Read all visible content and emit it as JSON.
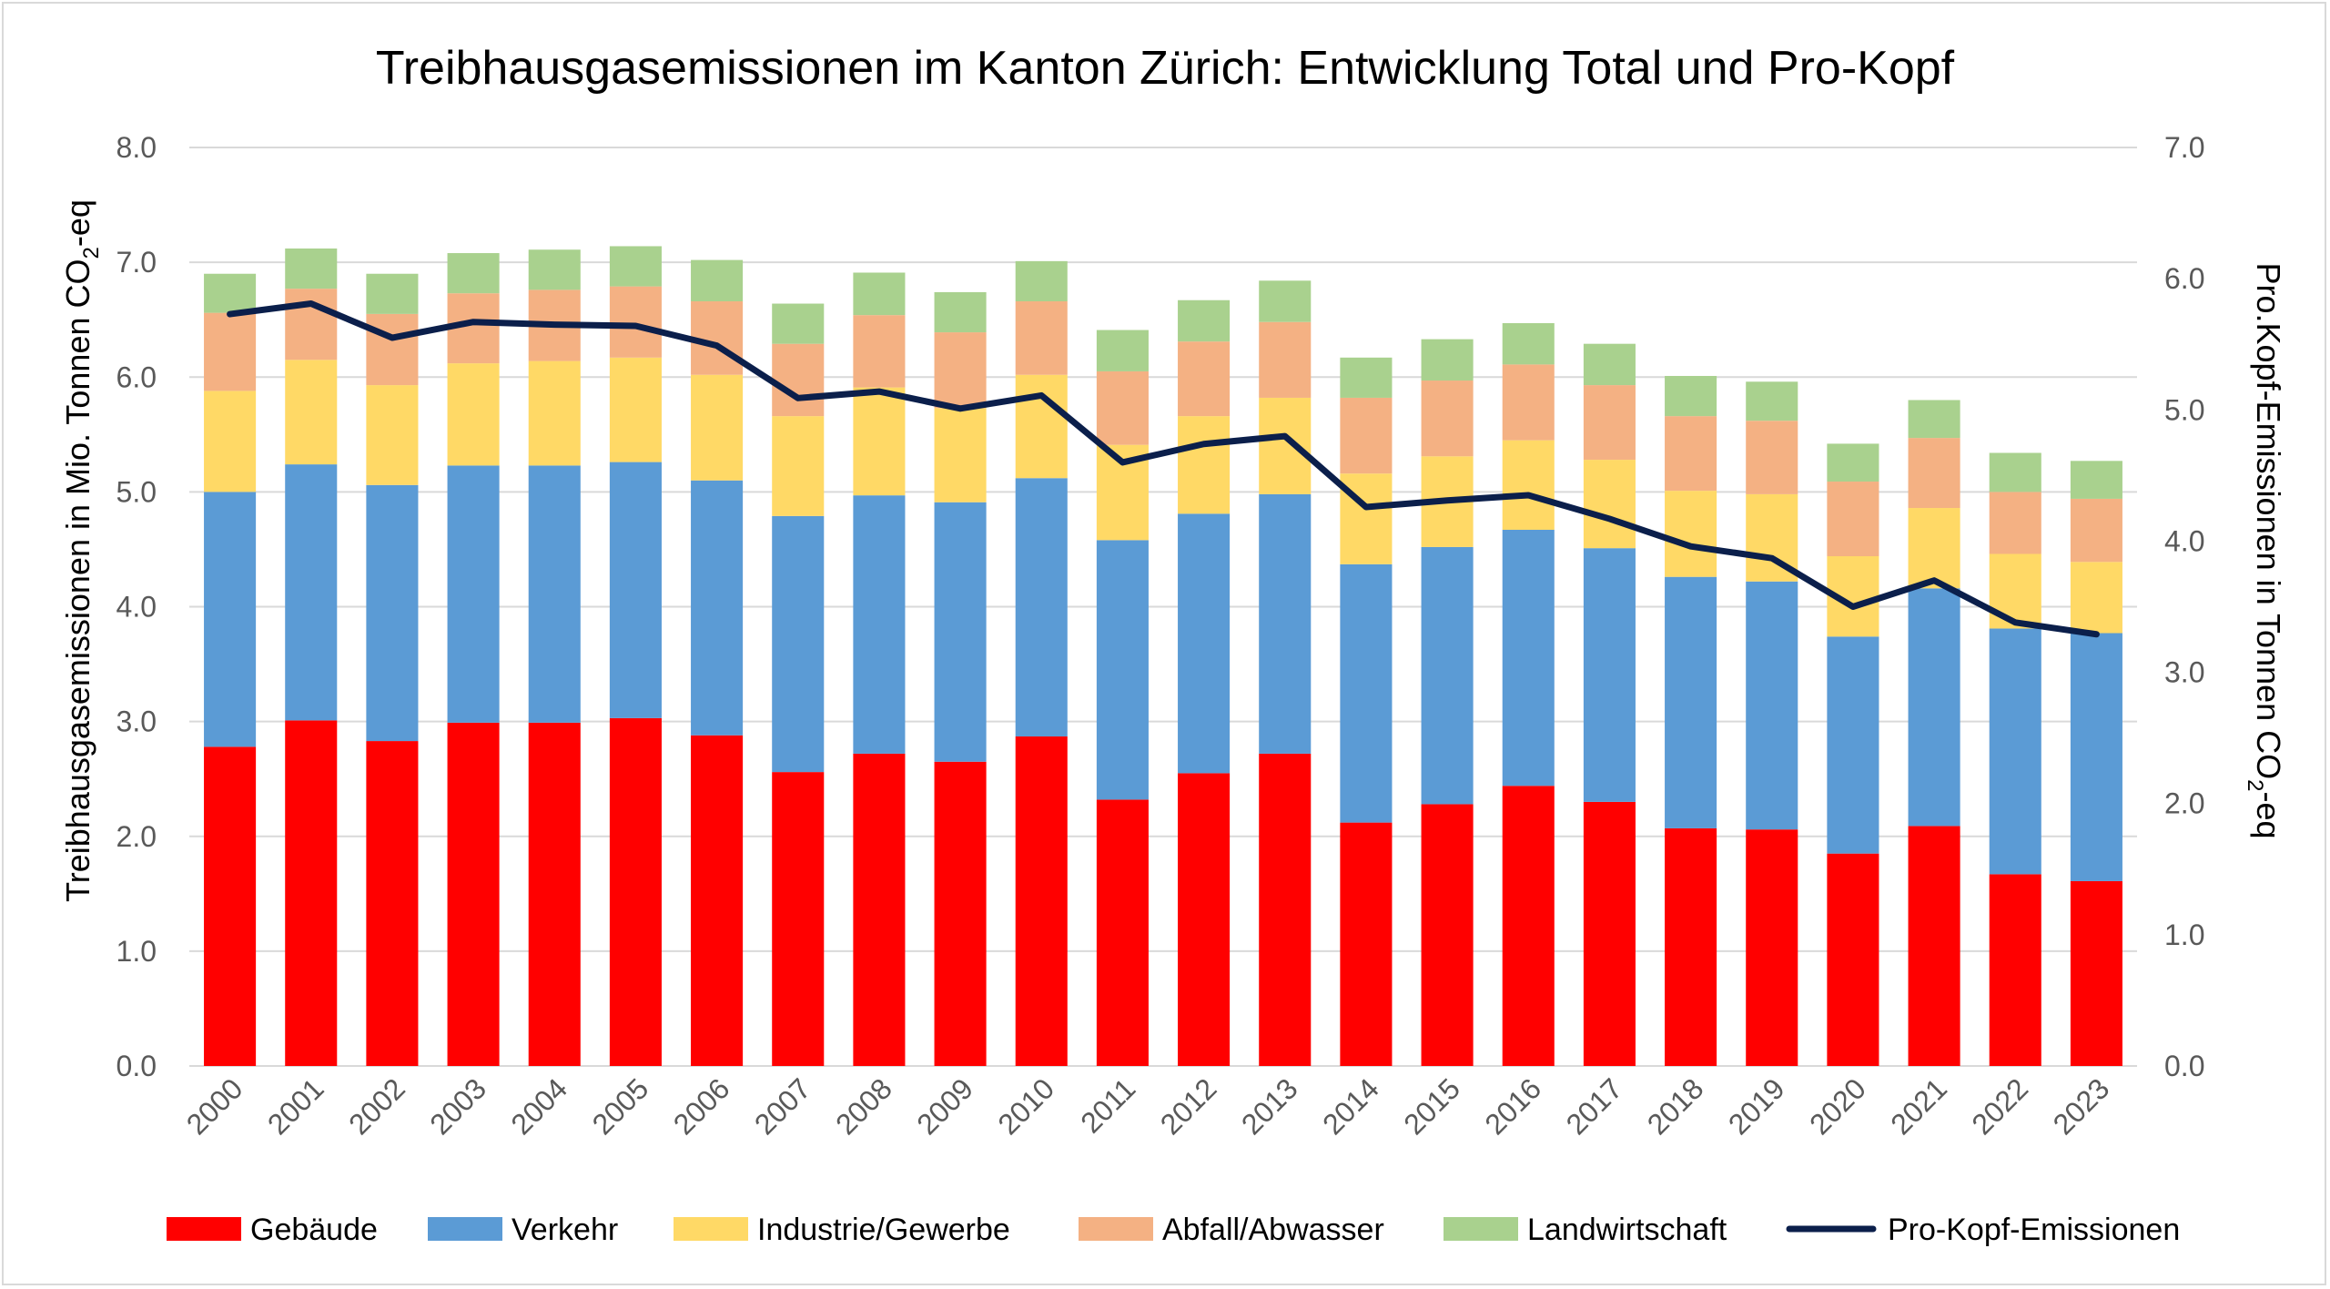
{
  "chart_data": {
    "type": "bar",
    "stacked": true,
    "title": "Treibhausgasemissionen im Kanton Zürich: Entwicklung Total und Pro-Kopf",
    "ylabel": {
      "main": "Treibhausgasemissionen in Mio. Tonnen CO",
      "sub": "2",
      "tail": "-eq"
    },
    "y2label": {
      "main": "Pro.Kopf-Emissionen in Tonnen CO",
      "sub": "2",
      "tail": "-eq"
    },
    "ylim": [
      0,
      8
    ],
    "y2lim": [
      0,
      7
    ],
    "yticks": [
      "0.0",
      "1.0",
      "2.0",
      "3.0",
      "4.0",
      "5.0",
      "6.0",
      "7.0",
      "8.0"
    ],
    "y2ticks": [
      "0.0",
      "1.0",
      "2.0",
      "3.0",
      "4.0",
      "5.0",
      "6.0",
      "7.0"
    ],
    "grid": true,
    "legend_position": "bottom",
    "categories": [
      "2000",
      "2001",
      "2002",
      "2003",
      "2004",
      "2005",
      "2006",
      "2007",
      "2008",
      "2009",
      "2010",
      "2011",
      "2012",
      "2013",
      "2014",
      "2015",
      "2016",
      "2017",
      "2018",
      "2019",
      "2020",
      "2021",
      "2022",
      "2023"
    ],
    "series": [
      {
        "name": "Gebäude",
        "color": "#ff0000",
        "values": [
          2.78,
          3.01,
          2.83,
          2.99,
          2.99,
          3.03,
          2.88,
          2.56,
          2.72,
          2.65,
          2.87,
          2.32,
          2.55,
          2.72,
          2.12,
          2.28,
          2.44,
          2.3,
          2.07,
          2.06,
          1.85,
          2.09,
          1.67,
          1.61
        ]
      },
      {
        "name": "Verkehr",
        "color": "#5b9bd5",
        "values": [
          2.22,
          2.23,
          2.23,
          2.24,
          2.24,
          2.23,
          2.22,
          2.23,
          2.25,
          2.26,
          2.25,
          2.26,
          2.26,
          2.26,
          2.25,
          2.24,
          2.23,
          2.21,
          2.19,
          2.16,
          1.89,
          2.07,
          2.14,
          2.16
        ]
      },
      {
        "name": "Industrie/Gewerbe",
        "color": "#ffd966",
        "values": [
          0.88,
          0.91,
          0.87,
          0.89,
          0.91,
          0.91,
          0.92,
          0.87,
          0.94,
          0.82,
          0.9,
          0.83,
          0.85,
          0.84,
          0.79,
          0.79,
          0.78,
          0.77,
          0.75,
          0.76,
          0.7,
          0.7,
          0.65,
          0.62
        ]
      },
      {
        "name": "Abfall/Abwasser",
        "color": "#f4b183",
        "values": [
          0.68,
          0.62,
          0.62,
          0.61,
          0.62,
          0.62,
          0.64,
          0.63,
          0.63,
          0.66,
          0.64,
          0.64,
          0.65,
          0.66,
          0.66,
          0.66,
          0.66,
          0.65,
          0.65,
          0.64,
          0.65,
          0.61,
          0.54,
          0.55
        ]
      },
      {
        "name": "Landwirtschaft",
        "color": "#a9d18e",
        "values": [
          0.34,
          0.35,
          0.35,
          0.35,
          0.35,
          0.35,
          0.36,
          0.35,
          0.37,
          0.35,
          0.35,
          0.36,
          0.36,
          0.36,
          0.35,
          0.36,
          0.36,
          0.36,
          0.35,
          0.34,
          0.33,
          0.33,
          0.34,
          0.33
        ]
      }
    ],
    "line_series": {
      "name": "Pro-Kopf-Emissionen",
      "color": "#0b1f4b",
      "axis": "right",
      "values": [
        5.73,
        5.81,
        5.55,
        5.67,
        5.65,
        5.64,
        5.49,
        5.09,
        5.14,
        5.01,
        5.11,
        4.6,
        4.74,
        4.8,
        4.26,
        4.31,
        4.35,
        4.17,
        3.96,
        3.87,
        3.5,
        3.7,
        3.38,
        3.29
      ]
    }
  }
}
